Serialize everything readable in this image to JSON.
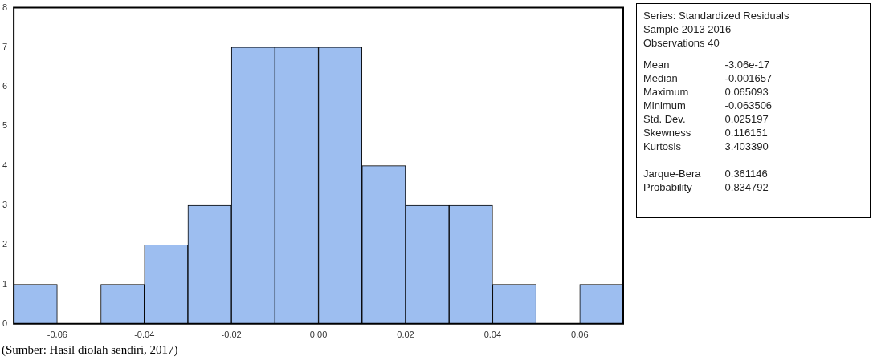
{
  "chart_data": [
    {
      "type": "histogram",
      "bins": [
        -0.07,
        -0.06,
        -0.05,
        -0.04,
        -0.03,
        -0.02,
        -0.01,
        0,
        0.01,
        0.02,
        0.03,
        0.04,
        0.05,
        0.06,
        0.07
      ],
      "values": [
        1,
        0,
        1,
        2,
        3,
        7,
        7,
        7,
        4,
        3,
        3,
        1,
        0,
        1
      ],
      "color": "#9dbef0",
      "xlim": [
        -0.07,
        0.07
      ],
      "xticks": [
        {
          "value": -0.06,
          "label": "-0.06"
        },
        {
          "value": -0.04,
          "label": "-0.04"
        },
        {
          "value": -0.02,
          "label": "-0.02"
        },
        {
          "value": 0,
          "label": "0.00"
        },
        {
          "value": 0.02,
          "label": "0.02"
        },
        {
          "value": 0.04,
          "label": "0.04"
        },
        {
          "value": 0.06,
          "label": "0.06"
        }
      ],
      "ylim": [
        0,
        8
      ],
      "yticks": [
        0,
        1,
        2,
        3,
        4,
        5,
        6,
        7,
        8
      ],
      "grid": false,
      "annotations": [
        "(Sumber: Hasil diolah sendiri, 2017)"
      ]
    },
    {
      "type": "other",
      "annotations": [
        "Series: Standardized Residuals",
        "Sample 2013 2016",
        "Observations 40"
      ],
      "categories": [
        "Mean",
        "Median",
        "Maximum",
        "Minimum",
        "Std. Dev.",
        "Skewness",
        "Kurtosis",
        null,
        "Jarque-Bera",
        "Probability"
      ],
      "value_labels": [
        "-3.06e-17",
        "-0.001657",
        "0.065093",
        "-0.063506",
        "0.025197",
        "0.116151",
        "3.403390",
        null,
        "0.361146",
        "0.834792"
      ]
    }
  ]
}
